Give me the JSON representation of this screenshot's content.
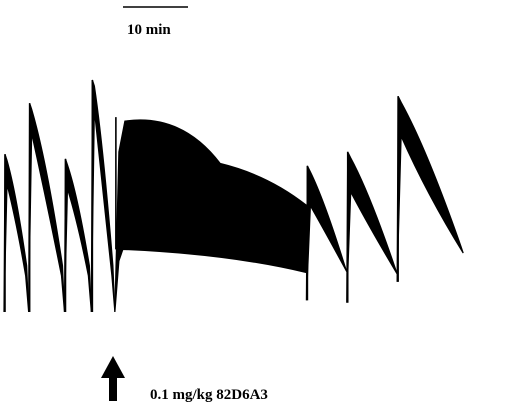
{
  "chart_data": {
    "type": "line",
    "title": "",
    "xlabel": "",
    "ylabel": "",
    "time_scale_bar": {
      "label": "10 min",
      "duration_min": 10
    },
    "axes": "none",
    "grid": false,
    "trace_color": "#000000",
    "series": [
      {
        "description_values": "relative amplitude of the pressure trace, 0 = bottom of trace, 1 = top of trace",
        "cycles_before_injection": [
          {
            "t_start_min": 0.0,
            "t_end_min": 2.2,
            "peak": 0.68,
            "trough": 0.0
          },
          {
            "t_start_min": 2.2,
            "t_end_min": 5.4,
            "peak": 0.9,
            "trough": 0.0
          },
          {
            "t_start_min": 5.4,
            "t_end_min": 7.8,
            "peak": 0.66,
            "trough": 0.0
          },
          {
            "t_start_min": 7.8,
            "t_end_min": 9.9,
            "peak": 1.0,
            "trough": 0.0
          }
        ],
        "injection_time_min": 9.9,
        "cycles_after_injection": [
          {
            "t_start_min": 9.9,
            "t_end_min": 27.0,
            "peak": 0.84,
            "trough": 0.27,
            "pattern": "sustained band, slow decline"
          },
          {
            "t_start_min": 27.0,
            "t_end_min": 30.6,
            "peak": 0.63,
            "trough": 0.05
          },
          {
            "t_start_min": 30.6,
            "t_end_min": 35.1,
            "peak": 0.69,
            "trough": 0.04
          },
          {
            "t_start_min": 35.1,
            "t_end_min": 41.0,
            "peak": 0.93,
            "trough": 0.13
          }
        ]
      }
    ]
  },
  "annotation": {
    "arrow_label": "0.1 mg/kg 82D6A3"
  }
}
